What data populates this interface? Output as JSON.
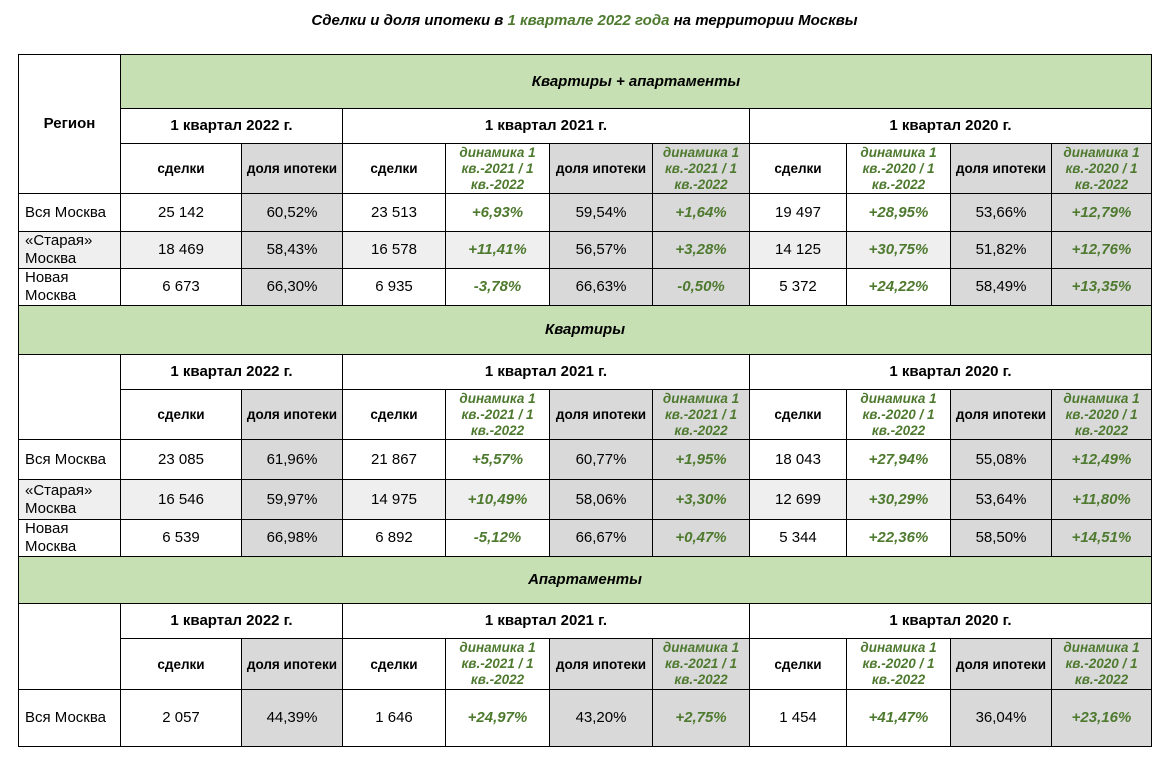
{
  "title": {
    "before": "Сделки и доля ипотеки в ",
    "highlight": "1 квартале 2022 года",
    "after": " на территории Москвы"
  },
  "region_header": "Регион",
  "quarters": [
    "1 квартал 2022 г.",
    "1 квартал 2021 г.",
    "1 квартал 2020 г."
  ],
  "col_labels": {
    "deals": "сделки",
    "mortgage": "доля ипотеки",
    "dyn_2021": "динамика 1 кв.-2021 / 1 кв.-2022",
    "dyn_2020": "динамика 1 кв.-2020 / 1 кв.-2022"
  },
  "sections": [
    {
      "title": "Квартиры + апартаменты",
      "rows": [
        {
          "region": "Вся Москва",
          "d22": "25 142",
          "m22": "60,52%",
          "d21": "23 513",
          "g21": "+6,93%",
          "m21": "59,54%",
          "h21": "+1,64%",
          "d20": "19 497",
          "g20": "+28,95%",
          "m20": "53,66%",
          "h20": "+12,79%"
        },
        {
          "region": "«Старая» Москва",
          "d22": "18 469",
          "m22": "58,43%",
          "d21": "16 578",
          "g21": "+11,41%",
          "m21": "56,57%",
          "h21": "+3,28%",
          "d20": "14 125",
          "g20": "+30,75%",
          "m20": "51,82%",
          "h20": "+12,76%"
        },
        {
          "region": "Новая Москва",
          "d22": "6 673",
          "m22": "66,30%",
          "d21": "6 935",
          "g21": "-3,78%",
          "m21": "66,63%",
          "h21": "-0,50%",
          "d20": "5 372",
          "g20": "+24,22%",
          "m20": "58,49%",
          "h20": "+13,35%"
        }
      ]
    },
    {
      "title": "Квартиры",
      "rows": [
        {
          "region": "Вся Москва",
          "d22": "23 085",
          "m22": "61,96%",
          "d21": "21 867",
          "g21": "+5,57%",
          "m21": "60,77%",
          "h21": "+1,95%",
          "d20": "18 043",
          "g20": "+27,94%",
          "m20": "55,08%",
          "h20": "+12,49%"
        },
        {
          "region": "«Старая» Москва",
          "d22": "16 546",
          "m22": "59,97%",
          "d21": "14 975",
          "g21": "+10,49%",
          "m21": "58,06%",
          "h21": "+3,30%",
          "d20": "12 699",
          "g20": "+30,29%",
          "m20": "53,64%",
          "h20": "+11,80%"
        },
        {
          "region": "Новая Москва",
          "d22": "6 539",
          "m22": "66,98%",
          "d21": "6 892",
          "g21": "-5,12%",
          "m21": "66,67%",
          "h21": "+0,47%",
          "d20": "5 344",
          "g20": "+22,36%",
          "m20": "58,50%",
          "h20": "+14,51%"
        }
      ]
    },
    {
      "title": "Апартаменты",
      "rows": [
        {
          "region": "Вся Москва",
          "d22": "2 057",
          "m22": "44,39%",
          "d21": "1 646",
          "g21": "+24,97%",
          "m21": "43,20%",
          "h21": "+2,75%",
          "d20": "1 454",
          "g20": "+41,47%",
          "m20": "36,04%",
          "h20": "+23,16%"
        }
      ]
    }
  ],
  "colors": {
    "band": "#c6e0b4",
    "grey": "#d9d9d9",
    "dynamics": "#4e7a2f"
  }
}
